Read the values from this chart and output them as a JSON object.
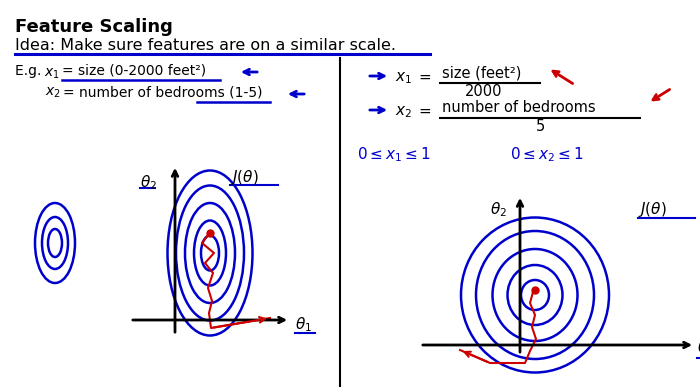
{
  "title": "Feature Scaling",
  "idea_text": "Idea: Make sure features are on a similar scale.",
  "eg_x1": "E.g. $x_1$ = size (0-2000 feet²)",
  "eg_x2": "$x_2$ = number of bedrooms (1-5)",
  "right_x1": "$x_1$ =",
  "right_x2": "$x_2$ =",
  "right_x1_frac_num": "size (feet²)",
  "right_x1_frac_den": "2000",
  "right_x2_frac_num": "number of bedrooms",
  "right_x2_frac_den": "5",
  "ineq": "0 ≤ $x_1$ ≤ 1",
  "ineq2": "0 ≤ $x_2$ ≤ 1",
  "bg_color": "#ffffff",
  "blue": "#0000cc",
  "red": "#cc0000",
  "black": "#000000"
}
